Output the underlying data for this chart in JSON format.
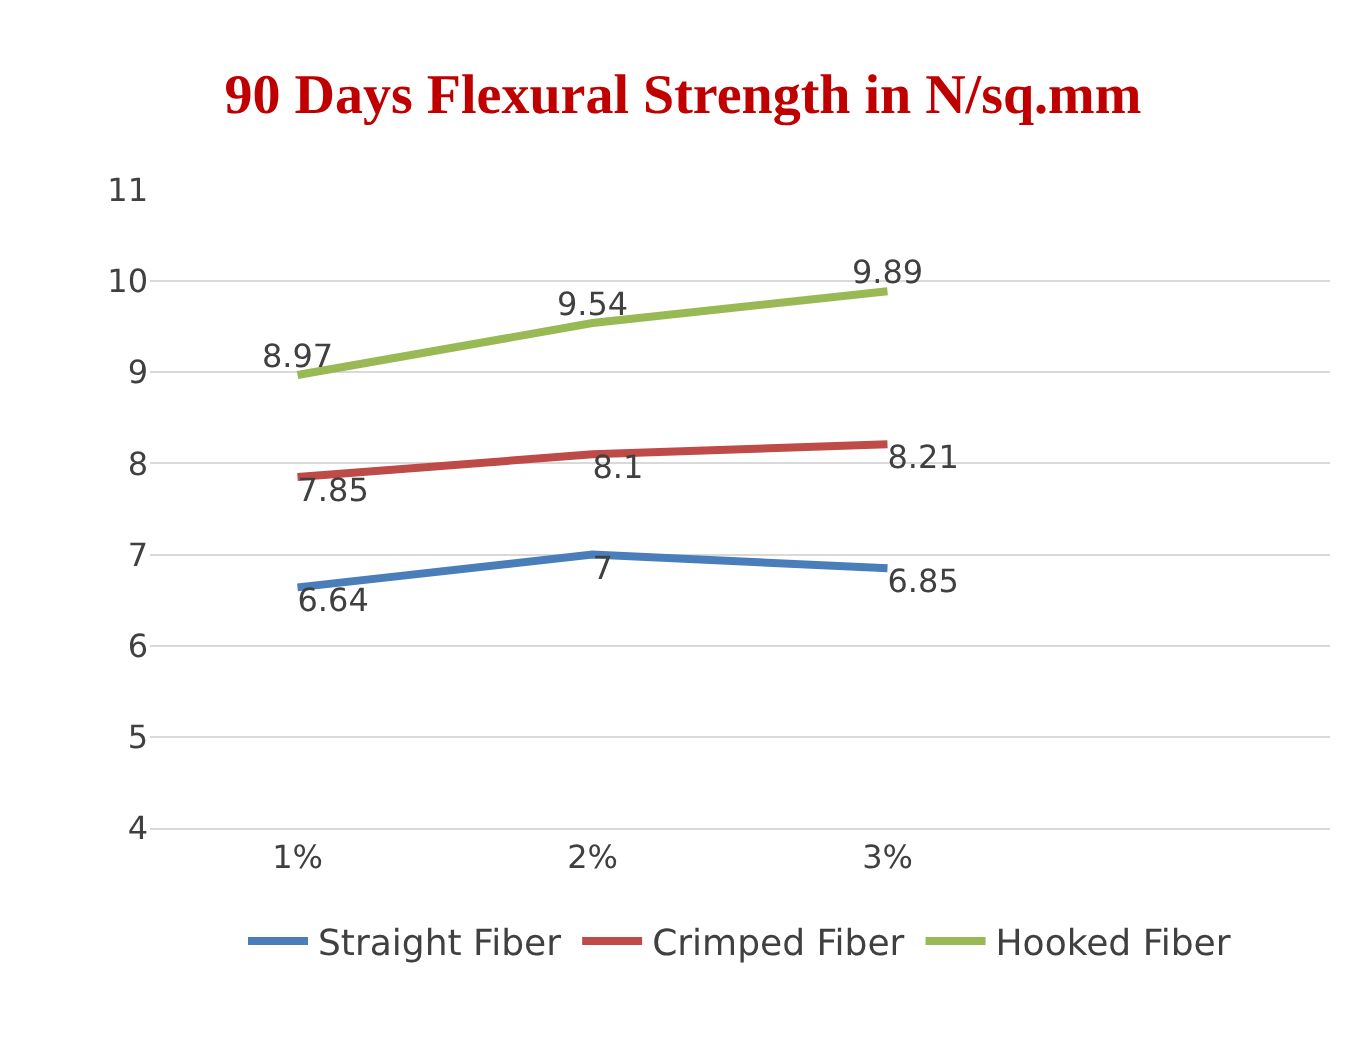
{
  "chart_data": {
    "type": "line",
    "title": "90 Days Flexural Strength in N/sq.mm",
    "categories": [
      "1%",
      "2%",
      "3%",
      null
    ],
    "series": [
      {
        "name": "Straight Fiber",
        "color": "#4a7ebb",
        "values": [
          6.64,
          7,
          6.85,
          null
        ]
      },
      {
        "name": "Crimped Fiber",
        "color": "#be4b48",
        "values": [
          7.85,
          8.1,
          8.21,
          null
        ]
      },
      {
        "name": "Hooked Fiber",
        "color": "#98b954",
        "values": [
          8.97,
          9.54,
          9.89,
          null
        ]
      }
    ],
    "ylim": [
      4,
      11
    ],
    "yticks": [
      4,
      5,
      6,
      7,
      8,
      9,
      10,
      11
    ],
    "grid": "y",
    "legend": "bottom",
    "data_labels": true,
    "marker": "none",
    "line_style": "solid"
  }
}
